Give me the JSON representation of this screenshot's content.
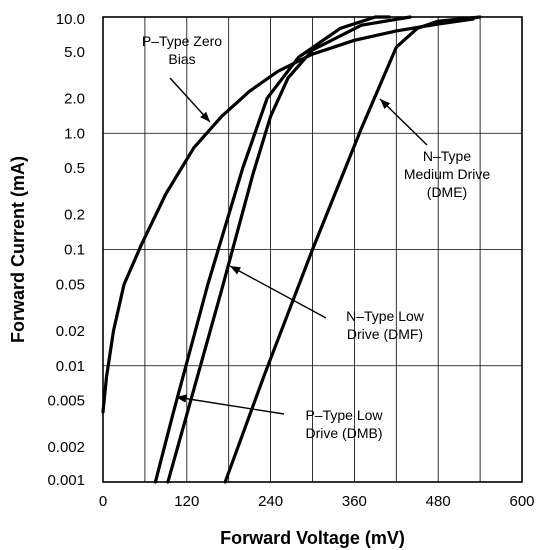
{
  "chart_data": {
    "type": "line",
    "xlabel": "Forward Voltage (mV)",
    "ylabel": "Forward Current (mA)",
    "xlim": [
      0,
      600
    ],
    "ylim": [
      0.001,
      10.0
    ],
    "yscale": "log",
    "grid": true,
    "x_ticks": [
      0,
      120,
      240,
      360,
      480,
      600
    ],
    "x_tick_labels": [
      "0",
      "120",
      "240",
      "360",
      "480",
      "600"
    ],
    "y_ticks": [
      10.0,
      5.0,
      2.0,
      1.0,
      0.5,
      0.2,
      0.1,
      0.05,
      0.02,
      0.01,
      0.005,
      0.002,
      0.001
    ],
    "y_tick_labels": [
      "10.0",
      "5.0",
      "2.0",
      "1.0",
      "0.5",
      "0.2",
      "0.1",
      "0.05",
      "0.02",
      "0.01",
      "0.005",
      "0.002",
      "0.001"
    ],
    "series": [
      {
        "name": "P–Type Zero Bias",
        "x": [
          0,
          5,
          15,
          30,
          55,
          90,
          130,
          170,
          210,
          250,
          300,
          360,
          420,
          480,
          530
        ],
        "y": [
          0.004,
          0.008,
          0.02,
          0.05,
          0.11,
          0.3,
          0.75,
          1.4,
          2.3,
          3.4,
          4.8,
          6.3,
          7.6,
          8.7,
          9.6
        ]
      },
      {
        "name": "P–Type Low Drive (DMB)",
        "x": [
          75,
          100,
          150,
          200,
          235,
          280,
          340,
          390,
          410
        ],
        "y": [
          0.001,
          0.0038,
          0.05,
          0.5,
          2.0,
          4.5,
          8.0,
          10.0,
          10.0
        ]
      },
      {
        "name": "N–Type Low Drive (DMF)",
        "x": [
          93,
          120,
          170,
          215,
          240,
          265,
          300,
          370,
          440
        ],
        "y": [
          0.001,
          0.0038,
          0.045,
          0.45,
          1.4,
          3.0,
          5.2,
          8.5,
          10.0
        ]
      },
      {
        "name": "N–Type Medium Drive (DME)",
        "x": [
          175,
          230,
          300,
          370,
          420,
          450,
          480,
          540
        ],
        "y": [
          0.001,
          0.008,
          0.1,
          1.1,
          5.5,
          8.0,
          9.2,
          10.0
        ]
      }
    ],
    "annotations": [
      {
        "lines": [
          "P–Type Zero",
          "Bias"
        ],
        "target_series": 0
      },
      {
        "lines": [
          "N–Type",
          "Medium Drive",
          "(DME)"
        ],
        "target_series": 3
      },
      {
        "lines": [
          "N–Type Low",
          "Drive (DMF)"
        ],
        "target_series": 2
      },
      {
        "lines": [
          "P–Type Low",
          "Drive (DMB)"
        ],
        "target_series": 1
      }
    ]
  }
}
